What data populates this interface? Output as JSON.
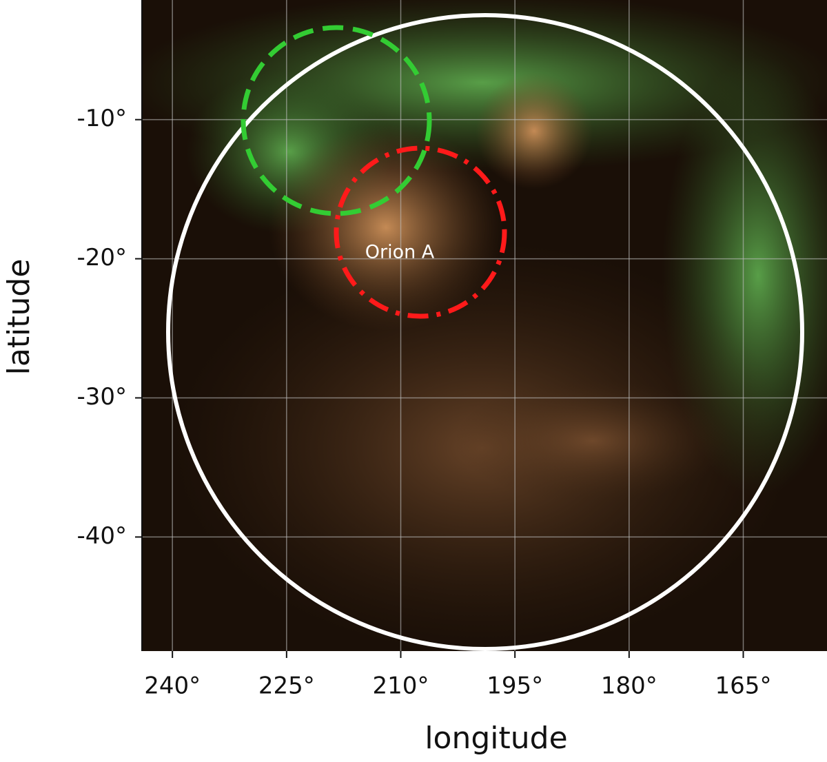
{
  "chart_data": {
    "type": "map",
    "xlabel": "longitude",
    "ylabel": "latitude",
    "annotation": "Orion A",
    "xlim": [
      244,
      154
    ],
    "ylim": [
      -1.4,
      -48.2
    ],
    "xticks": [
      {
        "value": 240,
        "label": "240°"
      },
      {
        "value": 225,
        "label": "225°"
      },
      {
        "value": 210,
        "label": "210°"
      },
      {
        "value": 195,
        "label": "195°"
      },
      {
        "value": 180,
        "label": "180°"
      },
      {
        "value": 165,
        "label": "165°"
      }
    ],
    "yticks": [
      {
        "value": -10,
        "label": "-10°"
      },
      {
        "value": -20,
        "label": "-20°"
      },
      {
        "value": -30,
        "label": "-30°"
      },
      {
        "value": -40,
        "label": "-40°"
      }
    ],
    "grid": true
  }
}
